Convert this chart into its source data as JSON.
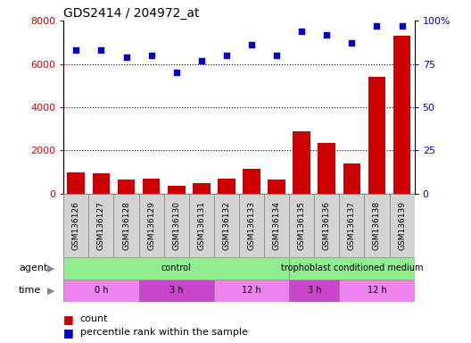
{
  "title": "GDS2414 / 204972_at",
  "samples": [
    "GSM136126",
    "GSM136127",
    "GSM136128",
    "GSM136129",
    "GSM136130",
    "GSM136131",
    "GSM136132",
    "GSM136133",
    "GSM136134",
    "GSM136135",
    "GSM136136",
    "GSM136137",
    "GSM136138",
    "GSM136139"
  ],
  "counts": [
    1000,
    950,
    650,
    700,
    350,
    500,
    700,
    1150,
    650,
    2900,
    2350,
    1400,
    5400,
    7300
  ],
  "percentile_ranks": [
    83,
    83,
    79,
    80,
    70,
    77,
    80,
    86,
    80,
    94,
    92,
    87,
    97,
    97
  ],
  "bar_color": "#CC0000",
  "dot_color": "#0000CC",
  "left_ylim": [
    0,
    8000
  ],
  "right_ylim": [
    0,
    100
  ],
  "left_yticks": [
    0,
    2000,
    4000,
    6000,
    8000
  ],
  "right_yticks": [
    0,
    25,
    50,
    75,
    100
  ],
  "right_yticklabels": [
    "0",
    "25",
    "50",
    "75",
    "100%"
  ],
  "grid_lines": [
    2000,
    4000,
    6000
  ],
  "agent_groups": [
    {
      "label": "control",
      "start": 0,
      "end": 9
    },
    {
      "label": "trophoblast conditioned medium",
      "start": 9,
      "end": 14
    }
  ],
  "time_groups": [
    {
      "label": "0 h",
      "start": 0,
      "end": 3,
      "shade": 0
    },
    {
      "label": "3 h",
      "start": 3,
      "end": 6,
      "shade": 1
    },
    {
      "label": "12 h",
      "start": 6,
      "end": 9,
      "shade": 0
    },
    {
      "label": "3 h",
      "start": 9,
      "end": 11,
      "shade": 1
    },
    {
      "label": "12 h",
      "start": 11,
      "end": 14,
      "shade": 0
    }
  ],
  "agent_color": "#90EE90",
  "time_color_light": "#EE82EE",
  "time_color_dark": "#CC44CC",
  "sample_bg_color": "#D3D3D3",
  "legend_count_label": "count",
  "legend_percentile_label": "percentile rank within the sample"
}
